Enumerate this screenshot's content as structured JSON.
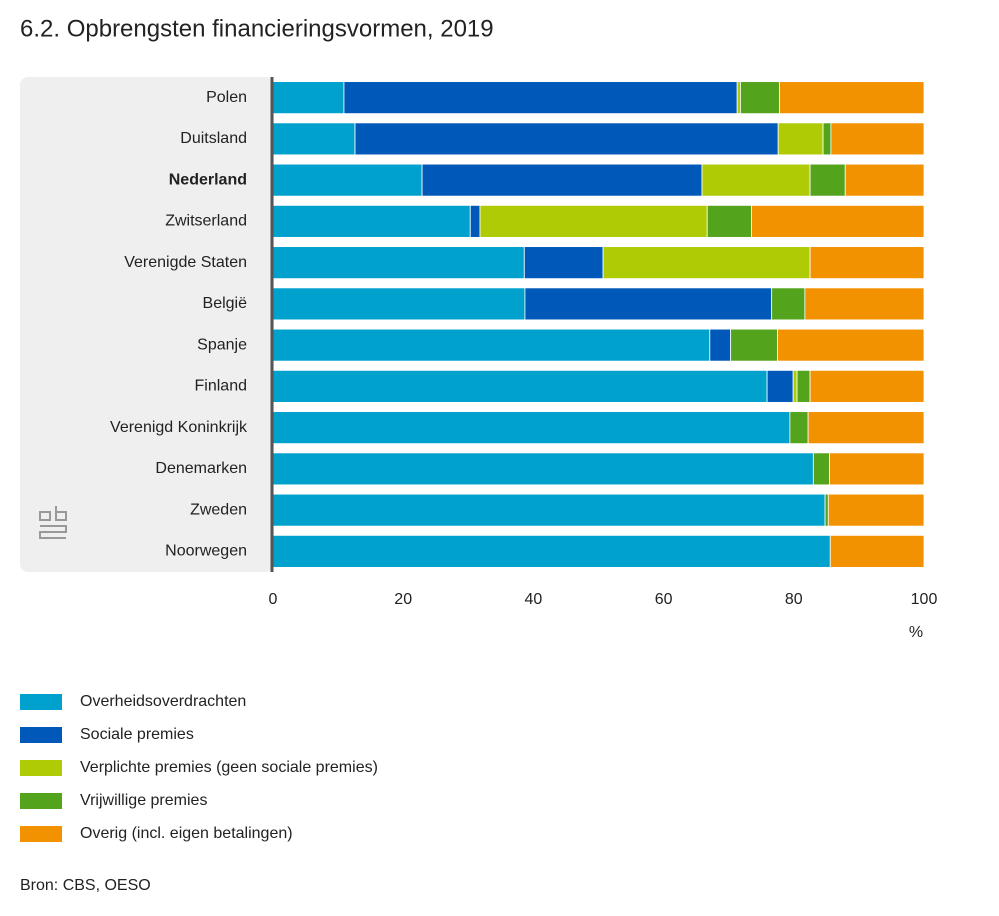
{
  "chart_data": {
    "type": "stacked-barh",
    "title": "6.2. Opbrengsten financieringsvormen, 2019",
    "categories": [
      "Polen",
      "Duitsland",
      "Nederland",
      "Zwitserland",
      "Verenigde Staten",
      "België",
      "Spanje",
      "Finland",
      "Verenigd Koninkrijk",
      "Denemarken",
      "Zweden",
      "Noorwegen"
    ],
    "highlight": "Nederland",
    "series": [
      {
        "name": "Overheidsoverdrachten",
        "color": "#00a1cd",
        "values": [
          10.9,
          12.6,
          22.9,
          30.3,
          38.6,
          38.7,
          67.1,
          75.9,
          79.4,
          83.0,
          84.8,
          85.6
        ]
      },
      {
        "name": "Sociale premies",
        "color": "#0058b8",
        "values": [
          60.4,
          65.0,
          43.0,
          1.5,
          12.1,
          37.9,
          3.2,
          4.0,
          0,
          0,
          0,
          0
        ]
      },
      {
        "name": "Verplichte premies (geen sociale premies)",
        "color": "#afcb05",
        "values": [
          0.5,
          6.9,
          16.6,
          34.9,
          31.8,
          0,
          0,
          0.6,
          0,
          0,
          0,
          0
        ]
      },
      {
        "name": "Vrijwillige premies",
        "color": "#53a31d",
        "values": [
          6.0,
          1.2,
          5.4,
          6.8,
          0,
          5.1,
          7.2,
          2.0,
          2.8,
          2.5,
          0.5,
          0
        ]
      },
      {
        "name": "Overig (incl. eigen betalingen)",
        "color": "#f39200",
        "values": [
          22.2,
          14.3,
          12.1,
          26.5,
          17.5,
          18.3,
          22.5,
          17.5,
          17.8,
          14.5,
          14.7,
          14.4
        ]
      }
    ],
    "xlim": [
      0,
      100
    ],
    "xticks": [
      0,
      20,
      40,
      60,
      80,
      100
    ],
    "xlabel": "%",
    "source": "Bron: CBS, OESO"
  }
}
